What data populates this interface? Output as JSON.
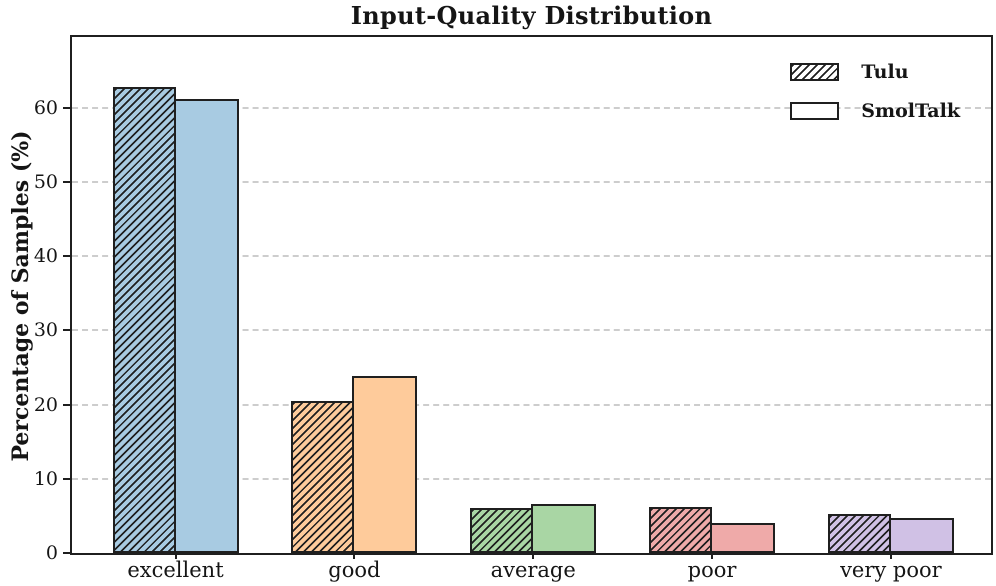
{
  "chart_data": {
    "type": "bar",
    "title": "Input-Quality Distribution",
    "xlabel": "",
    "ylabel": "Percentage of Samples (%)",
    "categories": [
      "excellent",
      "good",
      "average",
      "poor",
      "very poor"
    ],
    "series": [
      {
        "name": "Tulu",
        "values": [
          62.8,
          20.5,
          6.0,
          6.2,
          5.3
        ],
        "hatch": "///"
      },
      {
        "name": "SmolTalk",
        "values": [
          61.2,
          23.9,
          6.6,
          4.1,
          4.7
        ],
        "hatch": null
      }
    ],
    "category_colors": [
      "#a8cbe2",
      "#fecb9b",
      "#a9d6a4",
      "#efaaa9",
      "#d0c1e5"
    ],
    "edge_color": "#1f1f1f",
    "grid_color": "#cdcdcd",
    "grid": "horizontal-dashed",
    "yticks": [
      0,
      10,
      20,
      30,
      40,
      50,
      60
    ],
    "ylim": [
      0,
      69.5
    ],
    "legend_position": "upper-right"
  }
}
